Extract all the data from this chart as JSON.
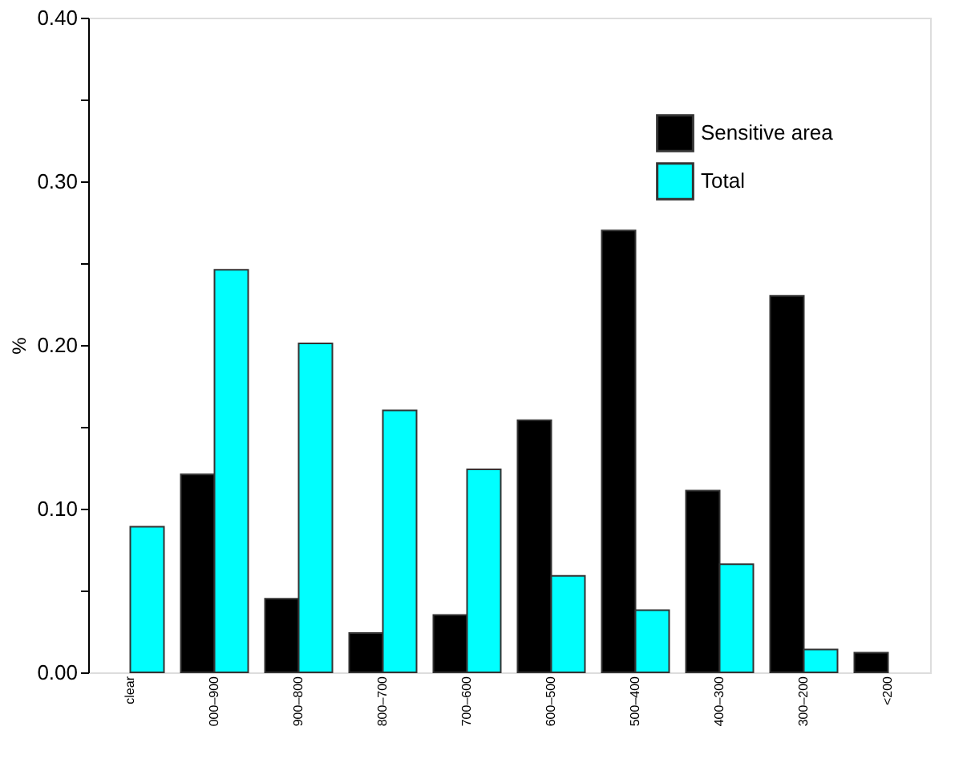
{
  "chart_data": {
    "type": "bar",
    "ylabel": "%",
    "categories": [
      "clear",
      "000–900",
      "900–800",
      "800–700",
      "700–600",
      "600–500",
      "500–400",
      "400–300",
      "300–200",
      "<200"
    ],
    "series": [
      {
        "name": "Sensitive area",
        "color": "#000000",
        "values": [
          0,
          0.121,
          0.045,
          0.024,
          0.035,
          0.154,
          0.27,
          0.111,
          0.23,
          0.012
        ]
      },
      {
        "name": "Total",
        "color": "#00ffff",
        "values": [
          0.089,
          0.246,
          0.201,
          0.16,
          0.124,
          0.059,
          0.038,
          0.066,
          0.014,
          0
        ]
      }
    ],
    "ylim": [
      0,
      0.4
    ],
    "yticks": [
      {
        "value": 0,
        "label": "0.00"
      },
      {
        "value": 0.05,
        "label": null
      },
      {
        "value": 0.1,
        "label": "0.10"
      },
      {
        "value": 0.15,
        "label": null
      },
      {
        "value": 0.2,
        "label": "0.20"
      },
      {
        "value": 0.25,
        "label": null
      },
      {
        "value": 0.3,
        "label": "0.30"
      },
      {
        "value": 0.35,
        "label": null
      },
      {
        "value": 0.4,
        "label": "0.40"
      }
    ],
    "grid": false,
    "legend": "top right"
  }
}
